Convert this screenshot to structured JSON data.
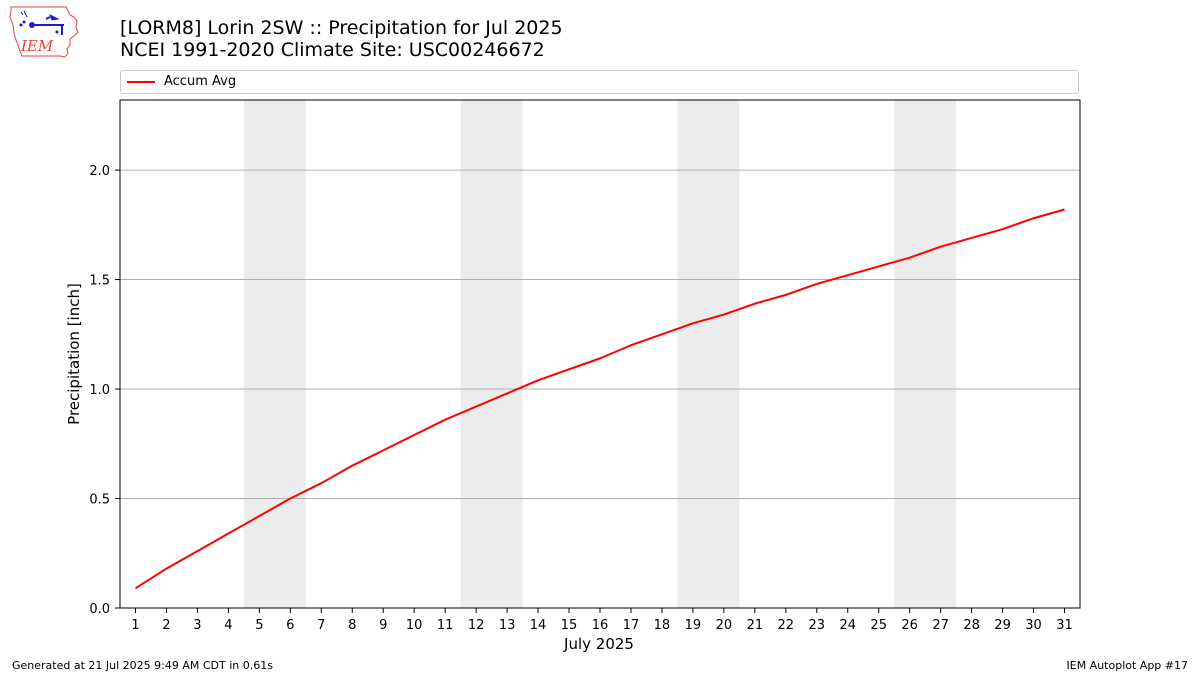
{
  "header": {
    "logo_text": "IEM",
    "title_line1": "[LORM8] Lorin 2SW :: Precipitation for Jul 2025",
    "title_line2": "NCEI 1991-2020 Climate Site: USC00246672"
  },
  "footer": {
    "generated": "Generated at 21 Jul 2025 9:49 AM CDT in 0.61s",
    "app": "IEM Autoplot App #17"
  },
  "colors": {
    "series_line": "#ff0000",
    "weekend_band": "#ececec",
    "grid": "#b0b0b0",
    "logo_outline": "#e3443a",
    "logo_icon": "#1c1cc8"
  },
  "chart_data": {
    "type": "line",
    "xlabel": "July 2025",
    "ylabel": "Precipitation [inch]",
    "x": [
      1,
      2,
      3,
      4,
      5,
      6,
      7,
      8,
      9,
      10,
      11,
      12,
      13,
      14,
      15,
      16,
      17,
      18,
      19,
      20,
      21,
      22,
      23,
      24,
      25,
      26,
      27,
      28,
      29,
      30,
      31
    ],
    "xlim": [
      0.5,
      31.5
    ],
    "ylim": [
      0,
      2.32
    ],
    "yticks": [
      0.0,
      0.5,
      1.0,
      1.5,
      2.0
    ],
    "ytick_labels": [
      "0.0",
      "0.5",
      "1.0",
      "1.5",
      "2.0"
    ],
    "grid": "horizontal",
    "legend_placement": "top, above plot",
    "shaded_day_ranges": [
      [
        5,
        6
      ],
      [
        12,
        13
      ],
      [
        19,
        20
      ],
      [
        26,
        27
      ]
    ],
    "series": [
      {
        "name": "Accum Avg",
        "values": [
          0.09,
          0.18,
          0.26,
          0.34,
          0.42,
          0.5,
          0.57,
          0.65,
          0.72,
          0.79,
          0.86,
          0.92,
          0.98,
          1.04,
          1.09,
          1.14,
          1.2,
          1.25,
          1.3,
          1.34,
          1.39,
          1.43,
          1.48,
          1.52,
          1.56,
          1.6,
          1.65,
          1.69,
          1.73,
          1.78,
          1.82
        ]
      }
    ]
  }
}
